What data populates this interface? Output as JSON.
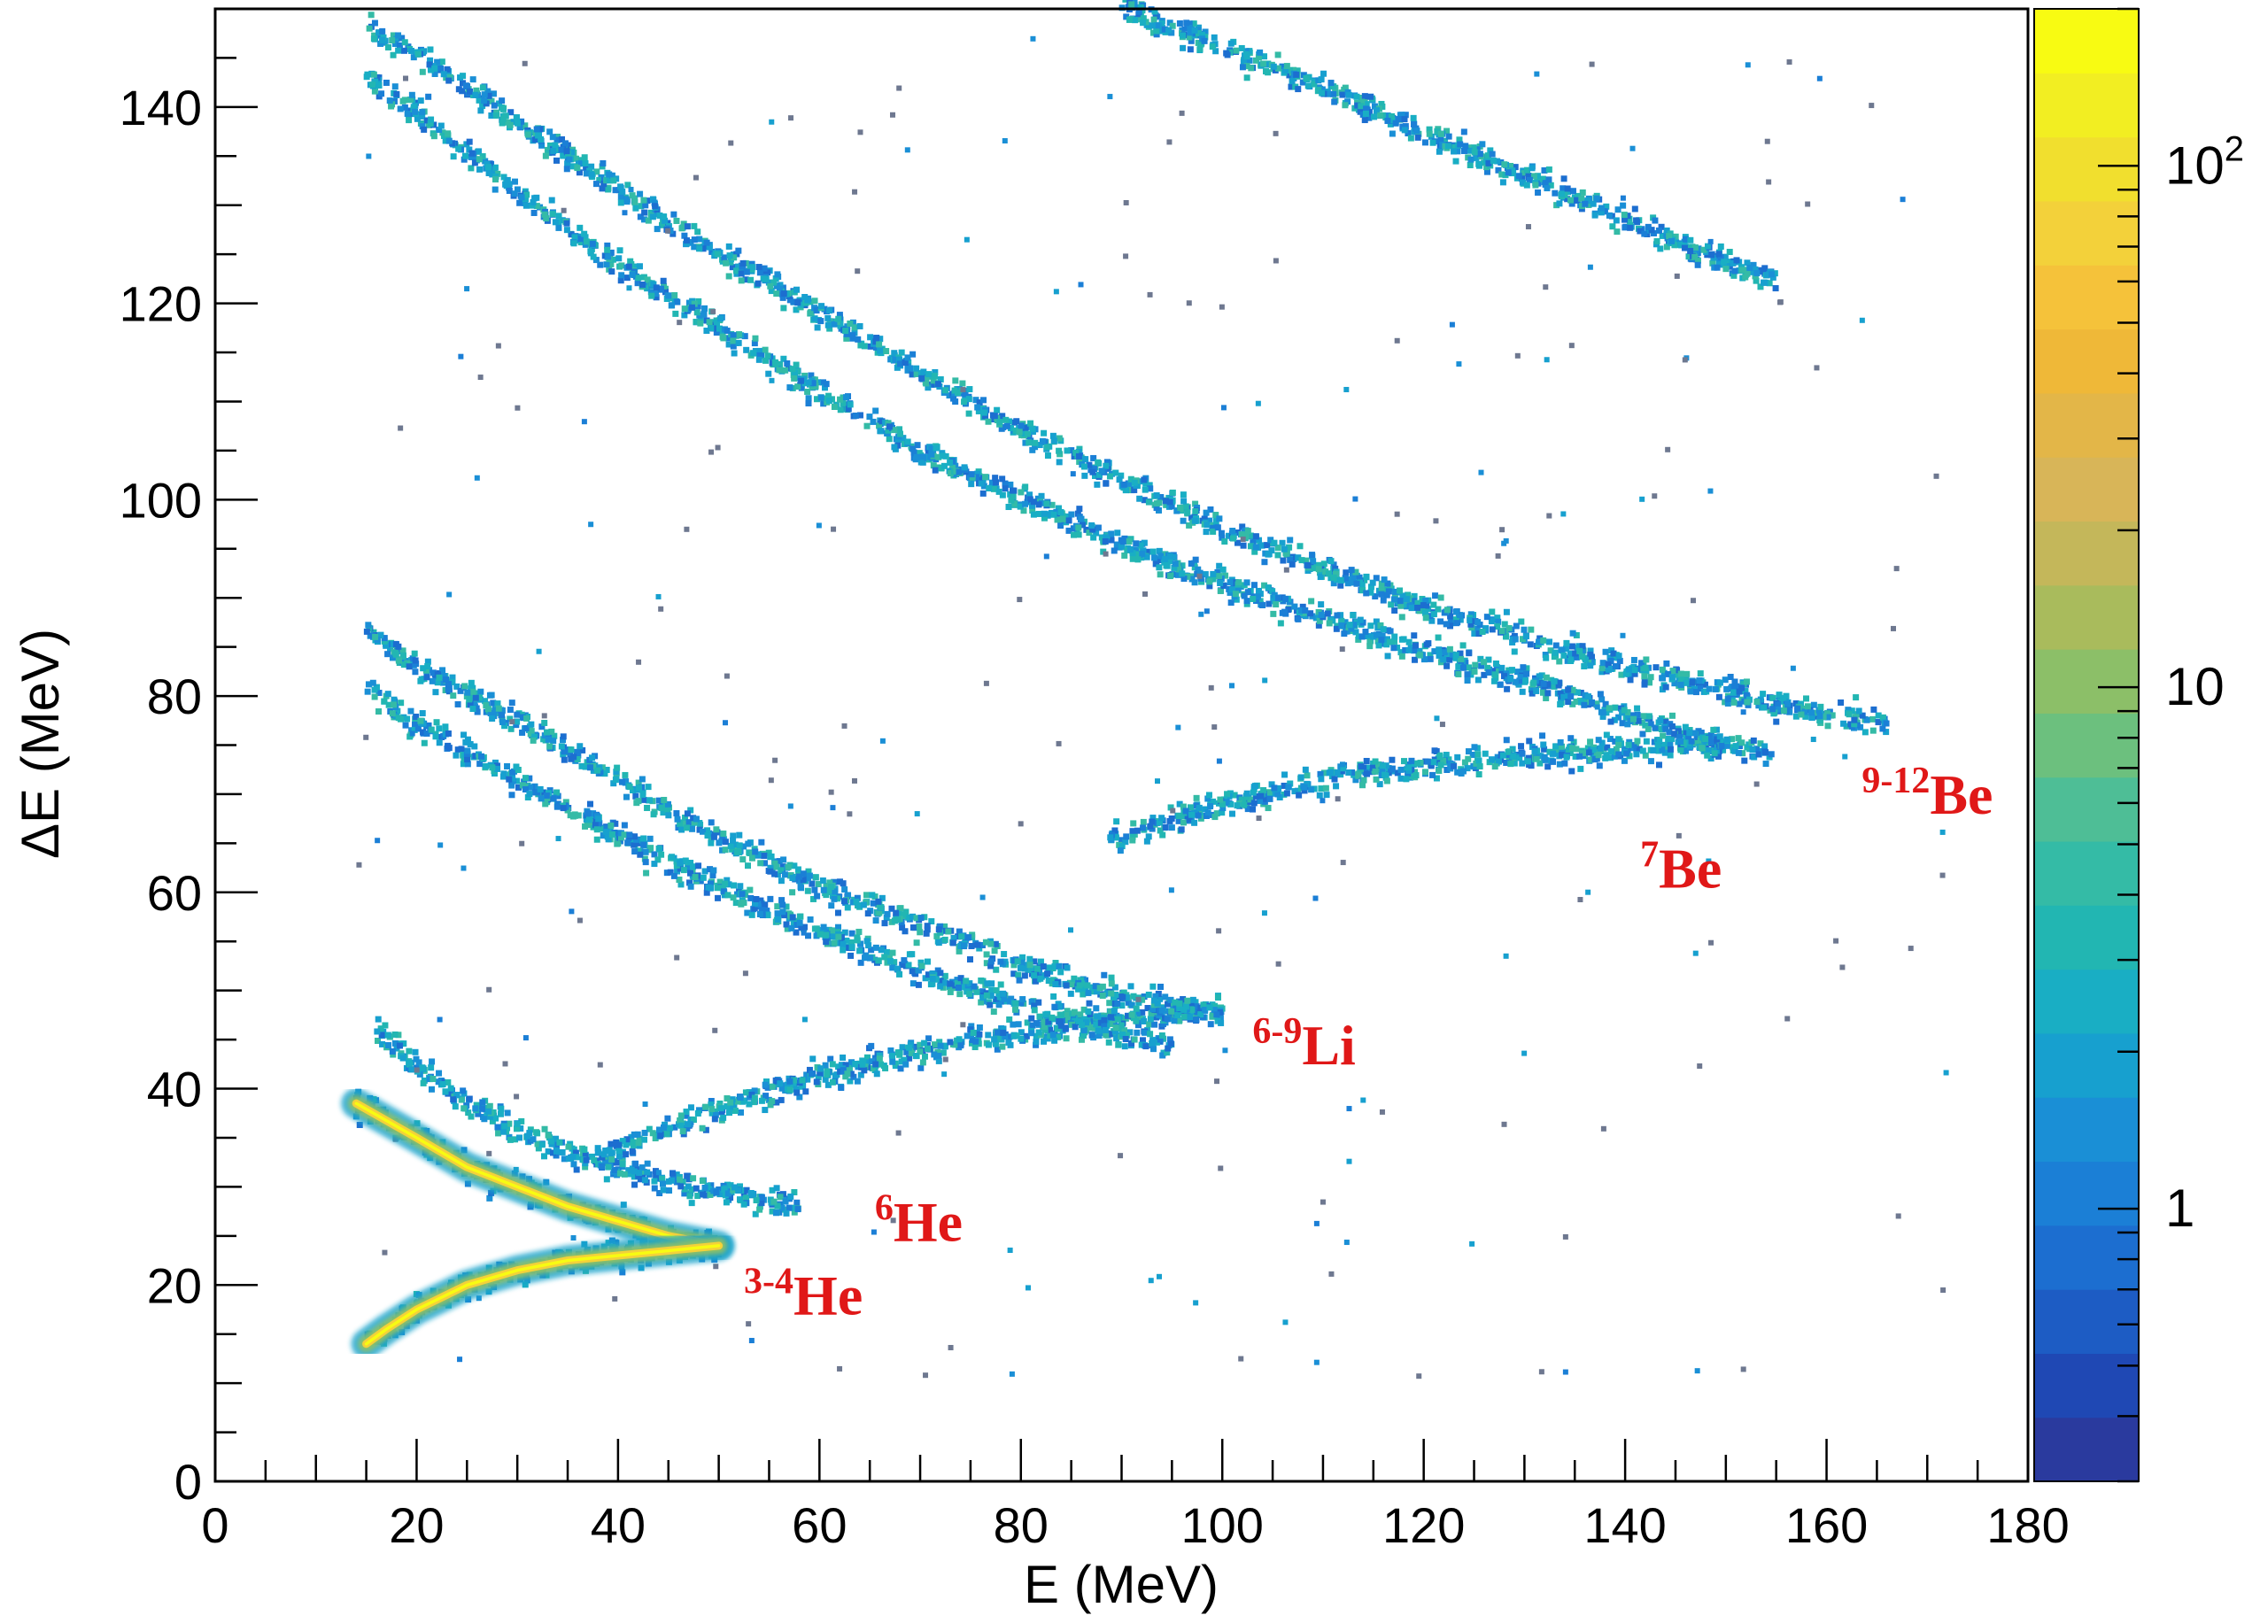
{
  "chart_data": {
    "type": "heatmap",
    "title": "",
    "xlabel": "E (MeV)",
    "ylabel": "ΔE (MeV)",
    "xlim": [
      0,
      180
    ],
    "ylim": [
      0,
      150
    ],
    "x_ticks": [
      0,
      20,
      40,
      60,
      80,
      100,
      120,
      140,
      160,
      180
    ],
    "x_tick_labels": [
      "0",
      "20",
      "40",
      "60",
      "80",
      "100",
      "120",
      "140",
      "160",
      "180"
    ],
    "y_ticks": [
      0,
      20,
      40,
      60,
      80,
      100,
      120,
      140
    ],
    "y_tick_labels": [
      "0",
      "20",
      "40",
      "60",
      "80",
      "100",
      "120",
      "140"
    ],
    "grid": false,
    "colorbar": {
      "scale": "log",
      "range": [
        0.3,
        200
      ],
      "labels": [
        {
          "value": 1,
          "text": "1"
        },
        {
          "value": 10,
          "text": "10"
        },
        {
          "value": 100,
          "base": "10",
          "exp": "2"
        }
      ],
      "palette": [
        "#2a3a9e",
        "#1f48b4",
        "#1d5cc4",
        "#1c6ed0",
        "#1b7fd6",
        "#1a8fd6",
        "#17a0cf",
        "#19aec4",
        "#22b6b2",
        "#34bba6",
        "#4ebe96",
        "#6cc07e",
        "#8cbf68",
        "#a9bb5c",
        "#c4b75a",
        "#d8b558",
        "#e3b648",
        "#efb838",
        "#f5c23a",
        "#f3d13a",
        "#f1df2e",
        "#f2ee22",
        "#f8fb12"
      ]
    },
    "bands": [
      {
        "label": "3-4He upper branch",
        "x": [
          14,
          20,
          25,
          30,
          35,
          40,
          45,
          50
        ],
        "y": [
          38.5,
          35,
          32,
          30,
          28,
          26.5,
          25,
          24
        ],
        "peak_counts": 150
      },
      {
        "label": "3-4He lower branch",
        "x": [
          15,
          17,
          20,
          25,
          30,
          35,
          40,
          45,
          50
        ],
        "y": [
          14,
          15.5,
          17.5,
          20,
          21.5,
          22.5,
          23,
          23.5,
          24
        ],
        "peak_counts": 180
      },
      {
        "label": "6He",
        "x": [
          16,
          20,
          25,
          30,
          35,
          40,
          45,
          50,
          55,
          58
        ],
        "y": [
          46,
          42,
          38.5,
          36,
          33.5,
          32,
          30.5,
          29.5,
          28.5,
          28
        ]
      },
      {
        "label": "Li rising branch",
        "x": [
          38,
          45,
          55,
          65,
          75,
          85,
          95,
          100
        ],
        "y": [
          33,
          36,
          40,
          42.5,
          45,
          46.5,
          47.5,
          48
        ]
      },
      {
        "label": "Li upper",
        "x": [
          15,
          20,
          30,
          40,
          50,
          60,
          70,
          80,
          90,
          100
        ],
        "y": [
          87,
          83,
          77.5,
          71.5,
          65.5,
          60.5,
          56.5,
          52.5,
          49.5,
          47.5
        ]
      },
      {
        "label": "Li lower",
        "x": [
          15,
          20,
          30,
          40,
          50,
          60,
          70,
          80,
          90,
          95
        ],
        "y": [
          81,
          77,
          71.5,
          66,
          60.5,
          56,
          52,
          48.5,
          45.5,
          44.5
        ]
      },
      {
        "label": "Be rising branch",
        "x": [
          88,
          100,
          110,
          120,
          130,
          140,
          150
        ],
        "y": [
          65,
          69,
          71.5,
          73,
          74,
          74.5,
          75
        ]
      },
      {
        "label": "Be upper",
        "x": [
          15,
          20,
          30,
          40,
          50,
          60,
          70,
          80,
          90,
          100,
          110,
          120,
          130,
          140,
          150,
          160,
          166
        ],
        "y": [
          148,
          145.5,
          138.5,
          131.5,
          125,
          119,
          113,
          107,
          102,
          97,
          93,
          89,
          86,
          83,
          80.5,
          78,
          77
        ]
      },
      {
        "label": "Be lower",
        "x": [
          15,
          20,
          30,
          40,
          50,
          60,
          70,
          80,
          90,
          100,
          110,
          120,
          130,
          140,
          150,
          155
        ],
        "y": [
          143,
          139.5,
          131.5,
          124,
          117.5,
          111,
          105,
          100,
          95.5,
          91.5,
          88,
          84.5,
          81.5,
          78,
          75,
          74
        ]
      },
      {
        "label": "B band",
        "x": [
          90,
          100,
          110,
          120,
          130,
          140,
          150,
          155
        ],
        "y": [
          150,
          146,
          142,
          137.5,
          133,
          128.5,
          124,
          122.5
        ]
      }
    ],
    "annotations": [
      {
        "pre": "3-4",
        "element": "He",
        "x": 52.5,
        "y": 17
      },
      {
        "pre": "6",
        "element": "He",
        "x": 65.5,
        "y": 24.5
      },
      {
        "pre": "6-9",
        "element": "Li",
        "x": 103,
        "y": 42.5
      },
      {
        "pre": "7",
        "element": "Be",
        "x": 141.5,
        "y": 60.5
      },
      {
        "pre": "9-12",
        "element": "Be",
        "x": 163.5,
        "y": 68
      }
    ]
  }
}
